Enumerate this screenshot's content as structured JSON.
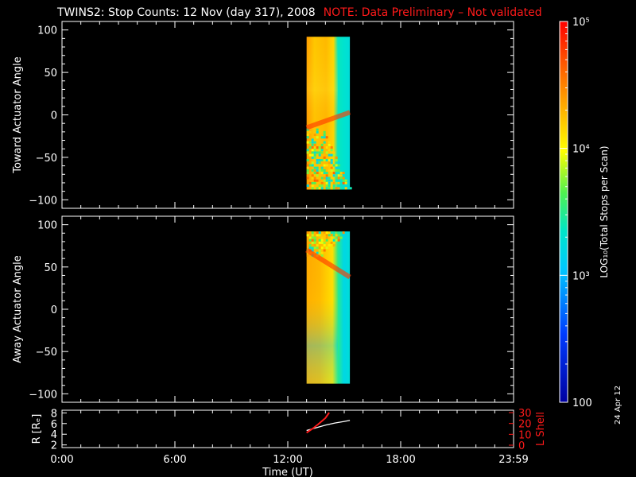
{
  "title": "TWINS2: Stop Counts: 12 Nov (day 317), 2008",
  "note": "NOTE: Data Preliminary – Not validated",
  "note_color": "#ff1a1a",
  "side_date": "24 Apr 12",
  "chart_data": [
    {
      "type": "heatmap",
      "panel": "toward",
      "ylabel": "Toward Actuator Angle",
      "ylim": [
        -110,
        110
      ],
      "yticks": [
        100,
        50,
        0,
        -50,
        -100
      ],
      "xlim": [
        0,
        24
      ],
      "xticks": [
        0,
        6,
        12,
        18,
        24
      ],
      "data_time_range": [
        13.0,
        15.3
      ],
      "angle_range": [
        -88,
        92
      ]
    },
    {
      "type": "heatmap",
      "panel": "away",
      "ylabel": "Away Actuator Angle",
      "ylim": [
        -110,
        110
      ],
      "yticks": [
        100,
        50,
        0,
        -50,
        -100
      ],
      "xlim": [
        0,
        24
      ],
      "xticks": [
        0,
        6,
        12,
        18,
        24
      ],
      "data_time_range": [
        13.0,
        15.3
      ],
      "angle_range": [
        -88,
        92
      ]
    },
    {
      "type": "line",
      "panel": "orbit",
      "ylabel_left": "R [Rₑ]",
      "ylabel_right": "L Shell",
      "ylim_left": [
        1.5,
        8.5
      ],
      "yticks_left": [
        2,
        4,
        6,
        8
      ],
      "ylim_right": [
        0,
        30
      ],
      "yticks_right": [
        0,
        10,
        20,
        30
      ],
      "right_axis_color": "#ff1a1a",
      "xticks": [
        0,
        6,
        12,
        18,
        24
      ],
      "xtick_labels": [
        "0:00",
        "6:00",
        "12:00",
        "18:00",
        "23:59"
      ],
      "xlabel": "Time (UT)",
      "series": [
        {
          "name": "R",
          "color": "#ffffff",
          "x": [
            13.0,
            13.5,
            14.0,
            14.5,
            15.0,
            15.3
          ],
          "y": [
            4.7,
            5.2,
            5.7,
            6.1,
            6.4,
            6.6
          ]
        },
        {
          "name": "L Shell",
          "color": "#ff1a1a",
          "axis": "right",
          "x": [
            13.0,
            13.3,
            13.6,
            14.0,
            14.2
          ],
          "y": [
            11.5,
            15,
            19,
            25,
            30
          ]
        }
      ]
    },
    {
      "type": "colorbar",
      "label": "LOG₁₀(Total Stops per Scan)",
      "range": [
        100,
        100000
      ],
      "scale": "log",
      "tick_labels": [
        "100",
        "10³",
        "10⁴",
        "10⁵"
      ],
      "tick_values": [
        100,
        1000,
        10000,
        100000
      ]
    }
  ]
}
